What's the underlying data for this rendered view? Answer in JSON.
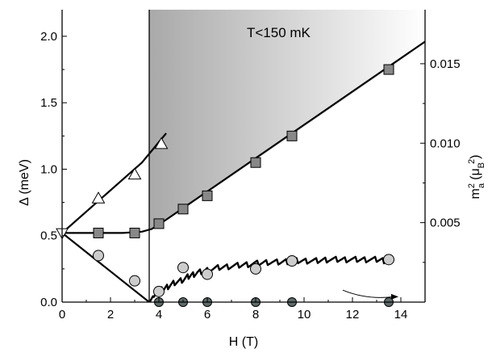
{
  "chart_data": {
    "type": "scatter",
    "annotation": "T<150 mK",
    "xlabel": "H (T)",
    "ylabel_left": {
      "main": "Δ (meV)"
    },
    "ylabel_right": {
      "base": "m",
      "sup": "2",
      "sub": "a",
      "unit_open": "(μ",
      "unit_sub": "B",
      "unit_sup": "2",
      "unit_close": ")"
    },
    "xlim": [
      0,
      15
    ],
    "ylim_left": [
      0,
      2.2
    ],
    "ylim_right": [
      0,
      0.0184
    ],
    "x_ticks": [
      "0",
      "2",
      "4",
      "6",
      "8",
      "10",
      "12",
      "14"
    ],
    "y_left_ticks": [
      "0.0",
      "0.5",
      "1.0",
      "1.5",
      "2.0"
    ],
    "y_right_ticks": [
      "0.005",
      "0.010",
      "0.015"
    ],
    "critical_field_line": 3.6,
    "colors": {
      "triangle_fill": "#ffffff",
      "square_fill": "#888888",
      "circle_open_fill": "#cccccc",
      "circle_dark_fill": "#5e6a6a",
      "shade_dark": "#a9a9a9",
      "shade_light": "#ffffff",
      "line": "#000000"
    },
    "series": [
      {
        "marker": "triangle",
        "axis": "left",
        "points": [
          [
            1.5,
            0.78
          ],
          [
            3.0,
            0.96
          ],
          [
            4.1,
            1.19
          ]
        ]
      },
      {
        "marker": "square",
        "axis": "left",
        "points": [
          [
            1.5,
            0.52
          ],
          [
            3.0,
            0.52
          ],
          [
            4.0,
            0.59
          ],
          [
            5.0,
            0.7
          ],
          [
            6.0,
            0.8
          ],
          [
            8.0,
            1.05
          ],
          [
            9.5,
            1.25
          ],
          [
            13.5,
            1.75
          ]
        ]
      },
      {
        "marker": "circle-open",
        "axis": "left",
        "points": [
          [
            1.5,
            0.35
          ],
          [
            3.0,
            0.16
          ],
          [
            4.0,
            0.08
          ],
          [
            5.0,
            0.26
          ],
          [
            6.0,
            0.21
          ],
          [
            8.0,
            0.25
          ],
          [
            9.5,
            0.31
          ],
          [
            13.5,
            0.32
          ]
        ]
      },
      {
        "marker": "circle-dark",
        "axis": "left",
        "points": [
          [
            4.0,
            0.0
          ],
          [
            5.0,
            0.0
          ],
          [
            6.0,
            0.0
          ],
          [
            8.0,
            0.0
          ],
          [
            9.5,
            0.0
          ],
          [
            13.5,
            0.0
          ]
        ]
      },
      {
        "marker": "triangle-down",
        "axis": "left",
        "points": [
          [
            0.0,
            0.52
          ]
        ]
      }
    ],
    "fit_lines": [
      [
        [
          0.0,
          0.52
        ],
        [
          3.3,
          1.05
        ],
        [
          4.3,
          1.27
        ]
      ],
      [
        [
          0.0,
          0.52
        ],
        [
          2.5,
          0.52
        ],
        [
          3.3,
          0.53
        ],
        [
          3.7,
          0.55
        ],
        [
          4.3,
          0.62
        ],
        [
          15.0,
          1.96
        ]
      ],
      [
        [
          0.0,
          0.52
        ],
        [
          3.6,
          0.0
        ]
      ]
    ],
    "shaded_band": {
      "lower": [
        [
          3.6,
          0.54
        ],
        [
          4.0,
          0.575
        ],
        [
          15.0,
          1.94
        ]
      ],
      "upper_y": 2.2,
      "x_range": [
        3.6,
        15.0
      ]
    },
    "magnetization": [
      [
        3.6,
        0.0
      ],
      [
        3.8,
        0.05
      ],
      [
        4.0,
        0.08
      ],
      [
        4.3,
        0.11
      ],
      [
        4.6,
        0.14
      ],
      [
        5.0,
        0.17
      ],
      [
        5.3,
        0.2
      ],
      [
        5.6,
        0.22
      ],
      [
        6.0,
        0.24
      ],
      [
        6.5,
        0.26
      ],
      [
        7.0,
        0.27
      ],
      [
        7.5,
        0.28
      ],
      [
        8.0,
        0.29
      ],
      [
        8.5,
        0.3
      ],
      [
        9.0,
        0.3
      ],
      [
        9.5,
        0.31
      ],
      [
        10.0,
        0.31
      ],
      [
        10.5,
        0.31
      ],
      [
        11.0,
        0.32
      ],
      [
        11.5,
        0.32
      ],
      [
        12.0,
        0.32
      ],
      [
        12.5,
        0.32
      ],
      [
        13.0,
        0.32
      ],
      [
        13.4,
        0.31
      ]
    ],
    "arrow": {
      "from": [
        11.6,
        0.09
      ],
      "to": [
        13.9,
        0.04
      ]
    }
  }
}
